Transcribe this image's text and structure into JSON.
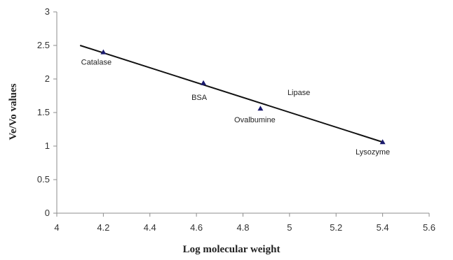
{
  "chart_data": {
    "type": "scatter",
    "xlabel": "Log molecular weight",
    "ylabel": "Ve/Vo values",
    "xlim": [
      4,
      5.6
    ],
    "ylim": [
      0,
      3
    ],
    "x_ticks": [
      "4",
      "4.2",
      "4.4",
      "4.6",
      "4.8",
      "5",
      "5.2",
      "5.4",
      "5.6"
    ],
    "y_ticks": [
      "0",
      "0.5",
      "1",
      "1.5",
      "2",
      "2.5",
      "3"
    ],
    "grid": false,
    "points": [
      {
        "x": 4.2,
        "y": 2.4,
        "label": "Catalase"
      },
      {
        "x": 4.63,
        "y": 1.94,
        "label": "BSA"
      },
      {
        "x": 4.875,
        "y": 1.56,
        "label": "Ovalbumine"
      },
      {
        "x": 5.4,
        "y": 1.06,
        "label": "Lysozyme"
      }
    ],
    "annotations": [
      {
        "x": 5.04,
        "y": 1.8,
        "text": "Lipase"
      }
    ],
    "trendline": {
      "x": [
        4.1,
        5.4
      ],
      "y": [
        2.5,
        1.06
      ]
    },
    "colors": {
      "marker": "#1a1a6e",
      "line": "#111111",
      "axis": "#8c8c8c"
    }
  }
}
